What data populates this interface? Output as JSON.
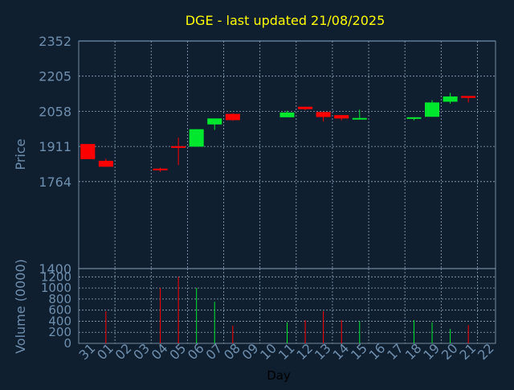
{
  "chart_data": {
    "type": "candlestick",
    "title": "DGE - last updated 21/08/2025",
    "xlabel": "Day",
    "price_panel": {
      "ylabel": "Price",
      "ylim": [
        1400,
        2352
      ],
      "yticks": [
        2352,
        2205,
        2058,
        1911,
        1764,
        1400
      ],
      "grid": true
    },
    "volume_panel": {
      "ylabel": "Volume (0000)",
      "ylim": [
        0,
        1350
      ],
      "yticks": [
        1200,
        1000,
        800,
        600,
        400,
        200,
        0
      ],
      "grid": true
    },
    "x_tick_labels": [
      "31",
      "01",
      "02",
      "03",
      "04",
      "05",
      "06",
      "07",
      "08",
      "09",
      "10",
      "11",
      "12",
      "13",
      "14",
      "15",
      "16",
      "17",
      "18",
      "19",
      "20",
      "21",
      "22"
    ],
    "candles": [
      {
        "day": "31",
        "open": 1921,
        "close": 1858,
        "high": 1921,
        "low": 1858,
        "volume": 0
      },
      {
        "day": "01",
        "open": 1851,
        "close": 1826,
        "high": 1860,
        "low": 1826,
        "volume": 580
      },
      {
        "day": "04",
        "open": 1818,
        "close": 1814,
        "high": 1822,
        "low": 1805,
        "volume": 1000
      },
      {
        "day": "05",
        "open": 1912,
        "close": 1905,
        "high": 1948,
        "low": 1833,
        "volume": 1200
      },
      {
        "day": "06",
        "open": 1910,
        "close": 1983,
        "high": 1983,
        "low": 1910,
        "volume": 1000
      },
      {
        "day": "07",
        "open": 2003,
        "close": 2028,
        "high": 2028,
        "low": 1980,
        "volume": 750
      },
      {
        "day": "08",
        "open": 2047,
        "close": 2021,
        "high": 2050,
        "low": 2018,
        "volume": 320
      },
      {
        "day": "11",
        "open": 2033,
        "close": 2053,
        "high": 2060,
        "low": 2033,
        "volume": 380
      },
      {
        "day": "12",
        "open": 2077,
        "close": 2067,
        "high": 2077,
        "low": 2063,
        "volume": 420
      },
      {
        "day": "13",
        "open": 2055,
        "close": 2034,
        "high": 2055,
        "low": 2015,
        "volume": 580
      },
      {
        "day": "14",
        "open": 2042,
        "close": 2028,
        "high": 2042,
        "low": 2020,
        "volume": 420
      },
      {
        "day": "15",
        "open": 2025,
        "close": 2030,
        "high": 2065,
        "low": 2025,
        "volume": 400
      },
      {
        "day": "18",
        "open": 2028,
        "close": 2033,
        "high": 2033,
        "low": 2020,
        "volume": 420
      },
      {
        "day": "19",
        "open": 2035,
        "close": 2095,
        "high": 2105,
        "low": 2035,
        "volume": 380
      },
      {
        "day": "20",
        "open": 2098,
        "close": 2120,
        "high": 2135,
        "low": 2090,
        "volume": 260
      },
      {
        "day": "21",
        "open": 2122,
        "close": 2114,
        "high": 2122,
        "low": 2095,
        "volume": 330
      }
    ],
    "colors": {
      "up": "#00e82e",
      "down": "#ff0000",
      "background": "#0f1f30",
      "title": "#ffff00",
      "axis_text": "#6f8fae",
      "grid": "#8fa6bd"
    }
  }
}
